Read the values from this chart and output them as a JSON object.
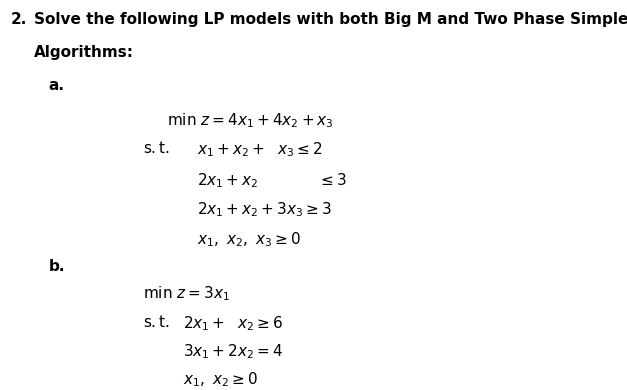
{
  "bg_color": "#ffffff",
  "text_color": "#000000",
  "header_number": "2.",
  "header_line1": "Solve the following LP models with both Big M and Two Phase Simplex",
  "header_line2": "Algorithms:",
  "label_a": "a.",
  "label_b": "b.",
  "part_a": {
    "obj": "min z = 4x_1 + 4x_2 + x_3",
    "st": "s.t.",
    "c1": "x_1 + x_2 +  x_3 \\leq 2",
    "c2": "2x_1 + x_2 \\leq 3",
    "c3": "2x_1 + x_2 + 3x_3 \\geq 3",
    "c4": "x_1, x_2, x_3 \\geq 0"
  },
  "part_b": {
    "obj": "min z = 3x_1",
    "st": "s.t.",
    "c1": "2x_1 +  x_2 \\geq 6",
    "c2": "3x_1 + 2x_2 = 4",
    "c3": "x_1, x_2 \\geq 0"
  }
}
